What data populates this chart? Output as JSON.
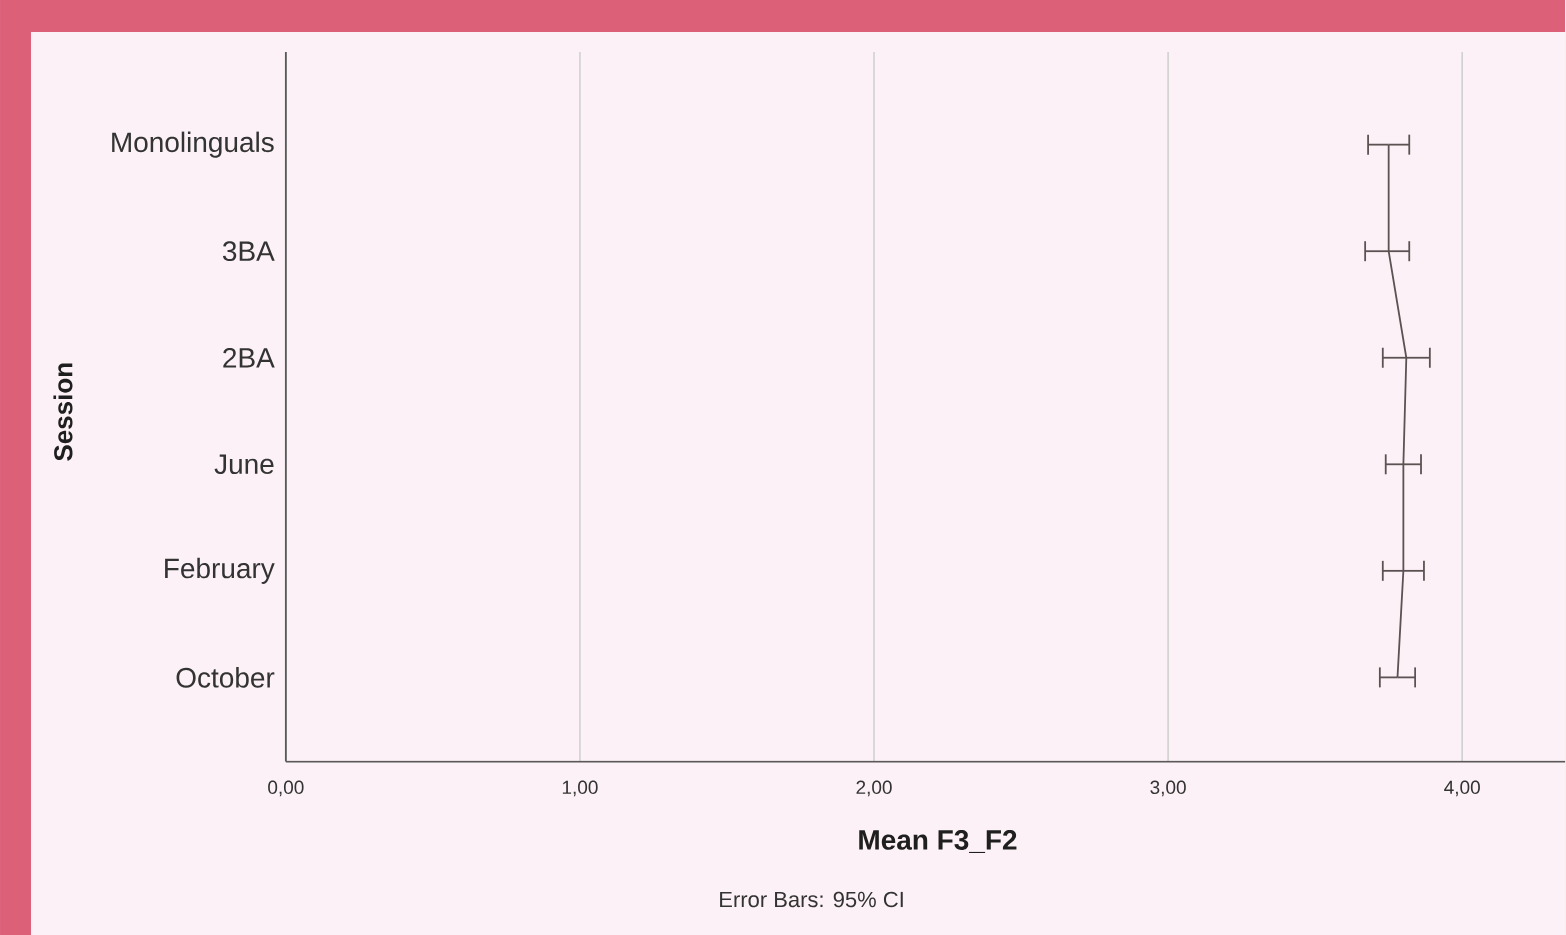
{
  "chart_data": {
    "type": "line",
    "orientation": "horizontal",
    "categories": [
      "Monolinguals",
      "3BA",
      "2BA",
      "June",
      "February",
      "October"
    ],
    "values": [
      3.75,
      3.75,
      3.81,
      3.8,
      3.8,
      3.78
    ],
    "errors": [
      [
        3.68,
        3.82
      ],
      [
        3.67,
        3.82
      ],
      [
        3.73,
        3.89
      ],
      [
        3.74,
        3.86
      ],
      [
        3.73,
        3.87
      ],
      [
        3.72,
        3.84
      ]
    ],
    "color": "#5b5353",
    "marker": "none",
    "xlim": [
      0,
      4.35
    ],
    "xticks": [
      {
        "value": 0,
        "label": "0,00"
      },
      {
        "value": 1,
        "label": "1,00"
      },
      {
        "value": 2,
        "label": "2,00"
      },
      {
        "value": 3,
        "label": "3,00"
      },
      {
        "value": 4,
        "label": "4,00"
      }
    ],
    "grid": "x",
    "xlabel": "Mean F3_F2",
    "ylabel": "Session",
    "annotations": [
      "Error Bars: 95% CI"
    ]
  }
}
